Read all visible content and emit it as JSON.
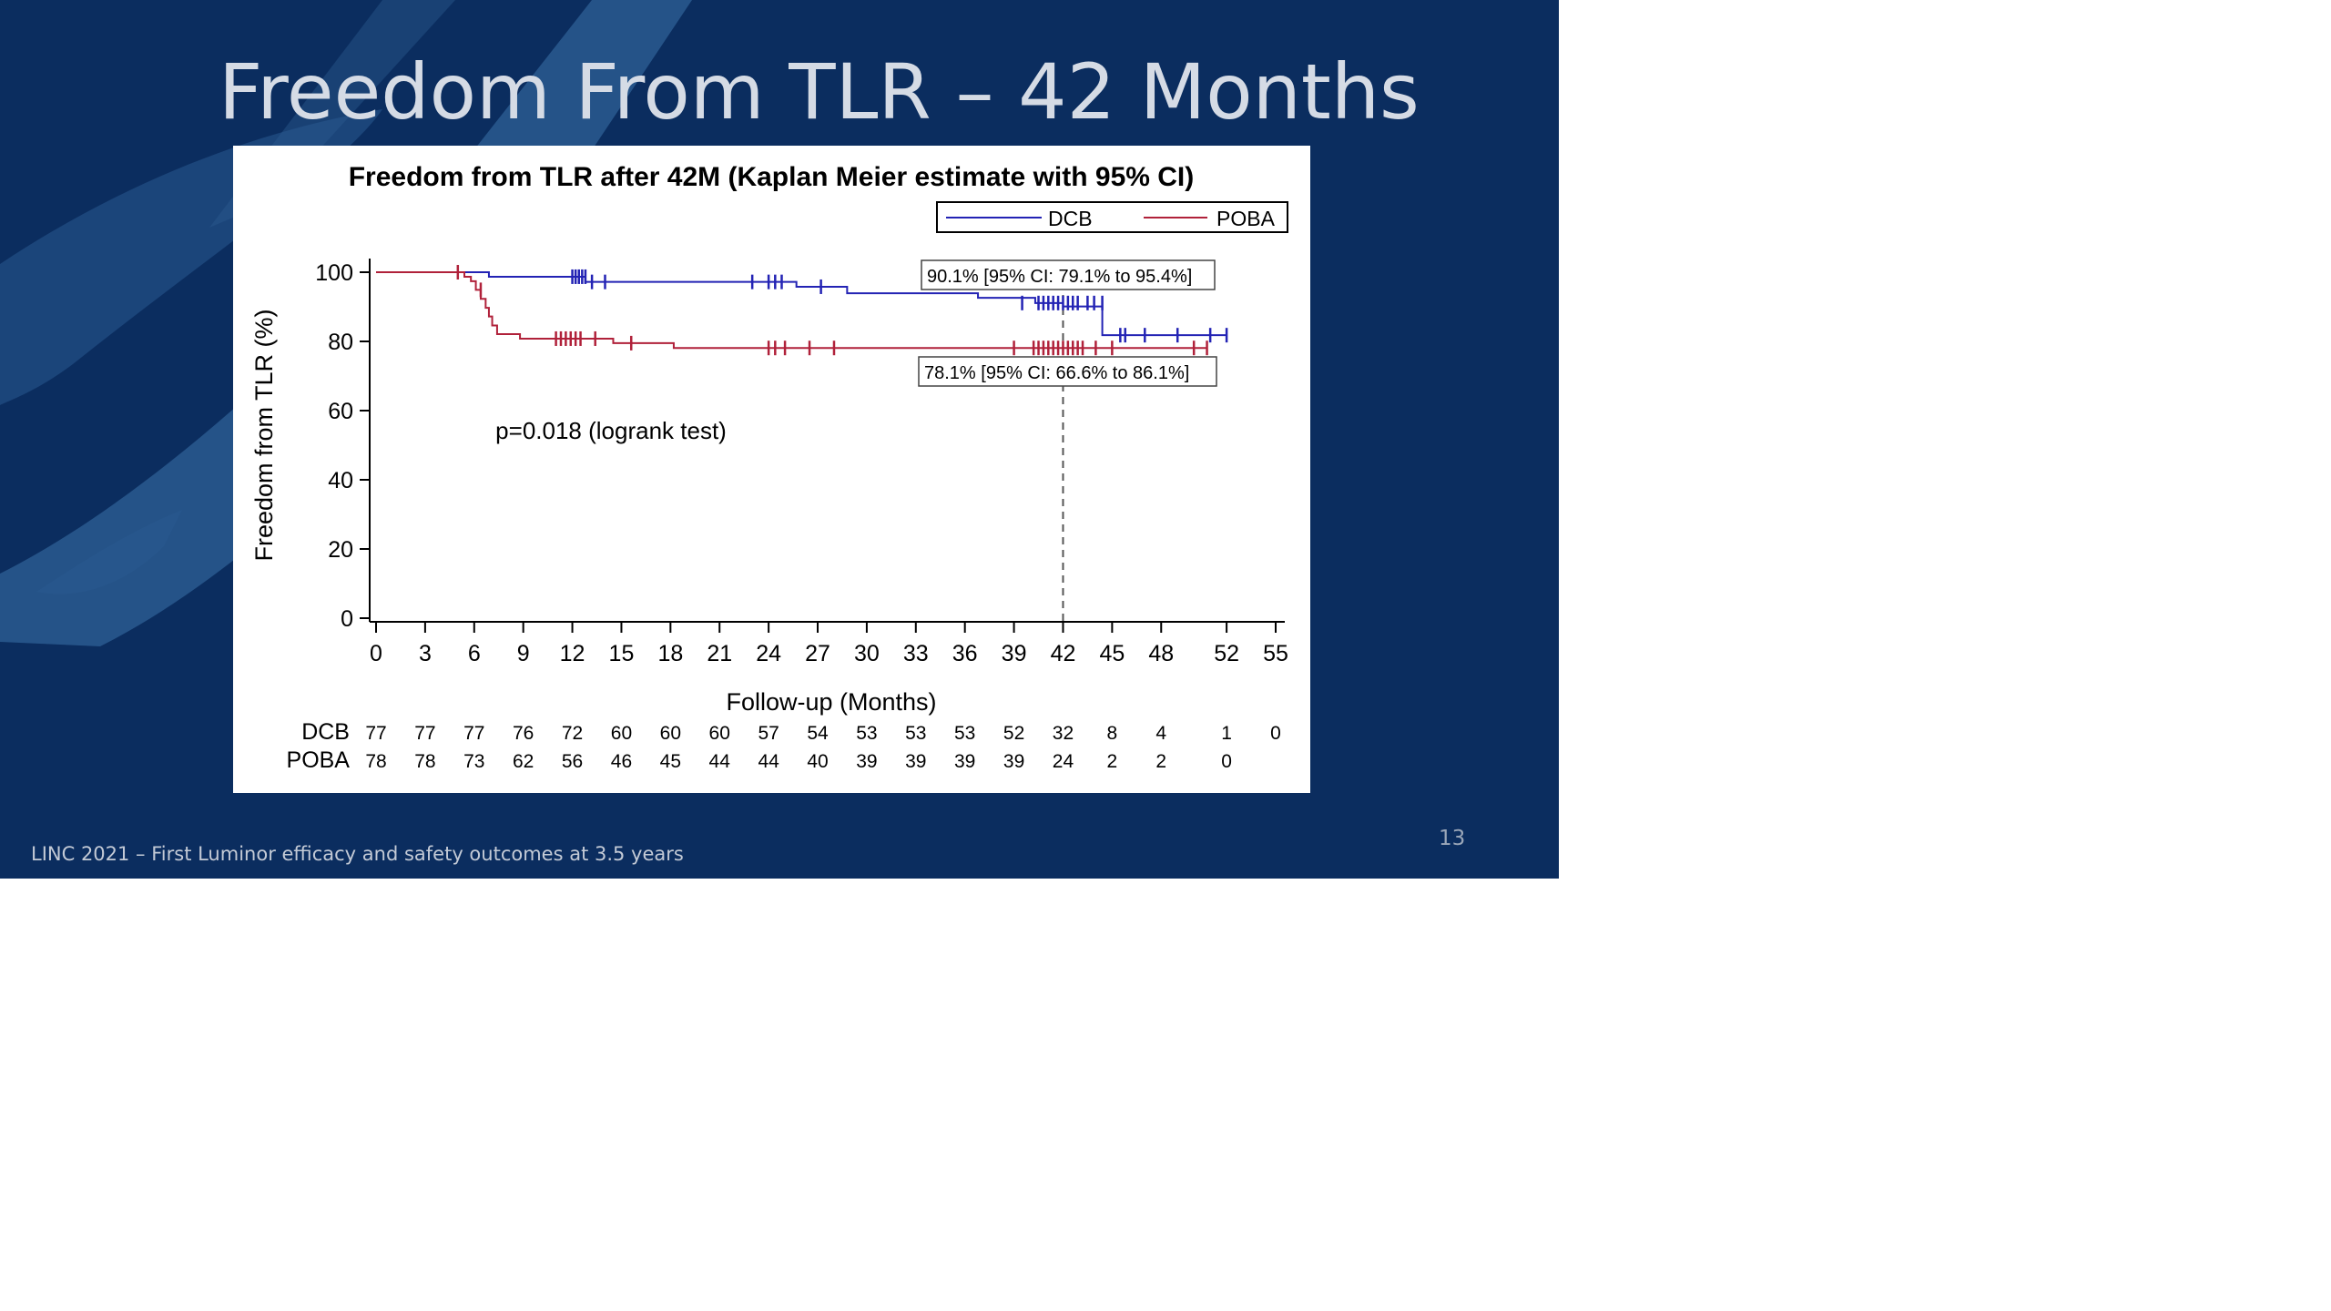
{
  "slide": {
    "title": "Freedom From TLR – 42 Months",
    "footer": "LINC 2021 – First Luminor efficacy and safety outcomes at 3.5 years",
    "page_number": "13",
    "colors": {
      "background": "#0b2d5f",
      "brush": "#2a5a8f",
      "title": "#d5dbe5"
    }
  },
  "chart_data": {
    "type": "line",
    "title": "Freedom from TLR after 42M (Kaplan Meier estimate with 95% CI)",
    "xlabel": "Follow-up (Months)",
    "ylabel": "Freedom from TLR (%)",
    "xlim": [
      0,
      55
    ],
    "ylim": [
      0,
      100
    ],
    "x_ticks": [
      0,
      3,
      6,
      9,
      12,
      15,
      18,
      21,
      24,
      27,
      30,
      33,
      36,
      39,
      42,
      45,
      48,
      52,
      55
    ],
    "y_ticks": [
      0,
      20,
      40,
      60,
      80,
      100
    ],
    "grid": false,
    "legend_position": "top-right",
    "reference_line_x": 42,
    "annotation": "p=0.018 (logrank test)",
    "series": [
      {
        "name": "DCB",
        "color": "#2323b4",
        "x": [
          0,
          6.9,
          12.8,
          25.7,
          28.8,
          36.8,
          40.3,
          42.0,
          44.4,
          52.0
        ],
        "y": [
          100,
          98.7,
          97.2,
          95.8,
          93.9,
          92.6,
          91.1,
          90.1,
          81.8,
          81.8
        ],
        "censored_x": [
          12,
          12.2,
          12.4,
          12.6,
          12.8,
          13.2,
          14,
          23,
          24,
          24.4,
          24.8,
          27.2,
          39.5,
          40.5,
          40.8,
          41.1,
          41.4,
          41.7,
          42,
          42.3,
          42.6,
          42.9,
          43.5,
          43.9,
          44.4,
          45.5,
          45.8,
          47,
          49,
          51,
          52
        ],
        "censored_y": [
          98.7,
          98.7,
          98.7,
          98.7,
          98.7,
          97.2,
          97.2,
          97.2,
          97.2,
          97.2,
          97.2,
          95.8,
          91.1,
          91.1,
          91.1,
          91.1,
          91.1,
          91.1,
          91.1,
          91.1,
          91.1,
          91.1,
          91.1,
          91.1,
          91.1,
          81.8,
          81.8,
          81.8,
          81.8,
          81.8,
          81.8
        ],
        "ci_label": "90.1% [95% CI: 79.1% to 95.4%]"
      },
      {
        "name": "POBA",
        "color": "#b0213a",
        "x": [
          0,
          5.4,
          5.8,
          6.1,
          6.4,
          6.7,
          6.9,
          7.1,
          7.4,
          8.8,
          14.5,
          18.2,
          50.8
        ],
        "y": [
          100,
          98.7,
          97.4,
          94.9,
          92.3,
          89.7,
          87.2,
          84.6,
          82.1,
          80.8,
          79.5,
          78.1,
          78.1
        ],
        "censored_x": [
          5,
          6.4,
          11,
          11.3,
          11.6,
          11.9,
          12.2,
          12.5,
          13.4,
          15.6,
          24,
          24.4,
          25,
          26.5,
          28,
          39,
          40.2,
          40.5,
          40.8,
          41.1,
          41.4,
          41.7,
          42,
          42.3,
          42.6,
          42.9,
          43.2,
          44,
          45,
          50,
          50.8
        ],
        "censored_y": [
          100,
          94.9,
          80.8,
          80.8,
          80.8,
          80.8,
          80.8,
          80.8,
          80.8,
          79.5,
          78.1,
          78.1,
          78.1,
          78.1,
          78.1,
          78.1,
          78.1,
          78.1,
          78.1,
          78.1,
          78.1,
          78.1,
          78.1,
          78.1,
          78.1,
          78.1,
          78.1,
          78.1,
          78.1,
          78.1,
          78.1
        ],
        "ci_label": "78.1% [95% CI: 66.6% to 86.1%]"
      }
    ],
    "at_risk": {
      "x": [
        0,
        3,
        6,
        9,
        12,
        15,
        18,
        21,
        24,
        27,
        30,
        33,
        36,
        39,
        42,
        45,
        48,
        52,
        55
      ],
      "rows": [
        {
          "label": "DCB",
          "values": [
            "77",
            "77",
            "77",
            "76",
            "72",
            "60",
            "60",
            "60",
            "57",
            "54",
            "53",
            "53",
            "53",
            "52",
            "32",
            "8",
            "4",
            "1",
            "0"
          ]
        },
        {
          "label": "POBA",
          "values": [
            "78",
            "78",
            "73",
            "62",
            "56",
            "46",
            "45",
            "44",
            "44",
            "40",
            "39",
            "39",
            "39",
            "39",
            "24",
            "2",
            "2",
            "0",
            ""
          ]
        }
      ]
    }
  }
}
